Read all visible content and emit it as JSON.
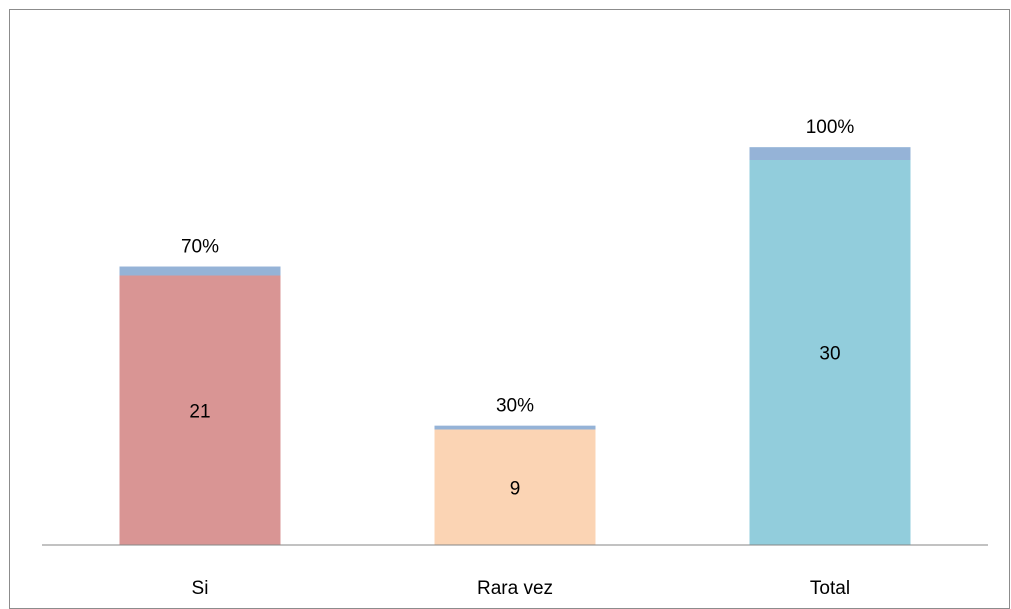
{
  "chart_data": {
    "type": "bar",
    "stacked": true,
    "categories": [
      "Si",
      "Rara vez",
      "Total"
    ],
    "series": [
      {
        "values": [
          21,
          9,
          30
        ],
        "colors": [
          "#d99594",
          "#fbd4b4",
          "#92cddc"
        ]
      },
      {
        "values": [
          0.7,
          0.3,
          1.0
        ],
        "color": "#95b3d7"
      }
    ],
    "data_labels": [
      "21",
      "9",
      "30"
    ],
    "percent_labels": [
      "70%",
      "30%",
      "100%"
    ],
    "title": "",
    "xlabel": "",
    "ylabel": "",
    "ylim": [
      0,
      36
    ],
    "grid": false,
    "legend": "none"
  }
}
